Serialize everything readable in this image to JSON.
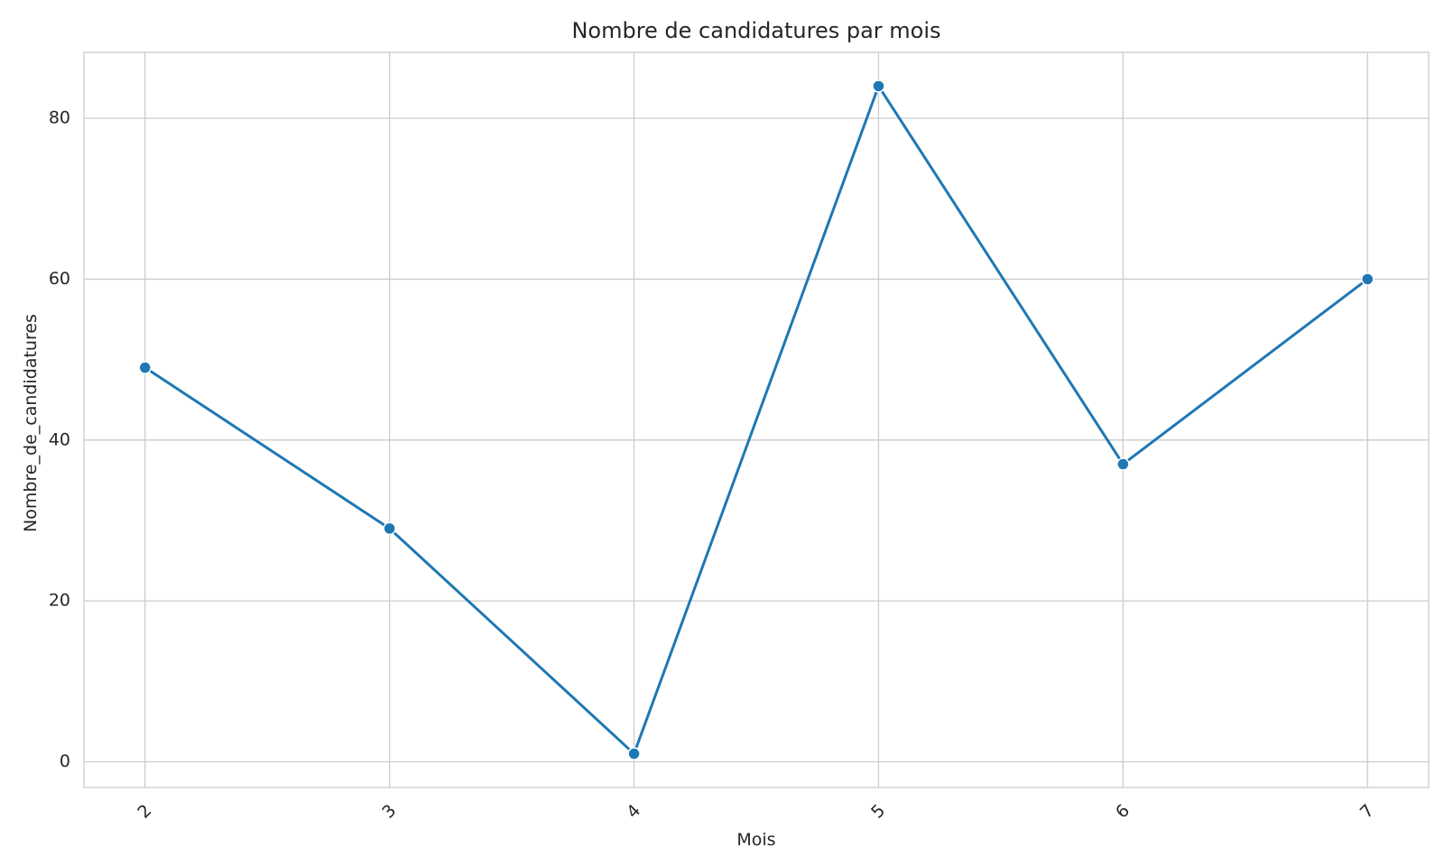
{
  "chart_data": {
    "type": "line",
    "title": "Nombre de candidatures par mois",
    "xlabel": "Mois",
    "ylabel": "Nombre_de_candidatures",
    "x": [
      2,
      3,
      4,
      5,
      6,
      7
    ],
    "x_tick_labels": [
      "2",
      "3",
      "4",
      "5",
      "6",
      "7"
    ],
    "xlim": [
      1.75,
      7.25
    ],
    "y_ticks": [
      0,
      20,
      40,
      60,
      80
    ],
    "y_tick_labels": [
      "0",
      "20",
      "40",
      "60",
      "80"
    ],
    "ylim": [
      -3.2,
      88.2
    ],
    "series": [
      {
        "values": [
          49,
          29,
          1,
          84,
          37,
          60
        ],
        "color": "#1f77b4"
      }
    ],
    "grid": true,
    "x_tick_rotation_deg": -45
  }
}
